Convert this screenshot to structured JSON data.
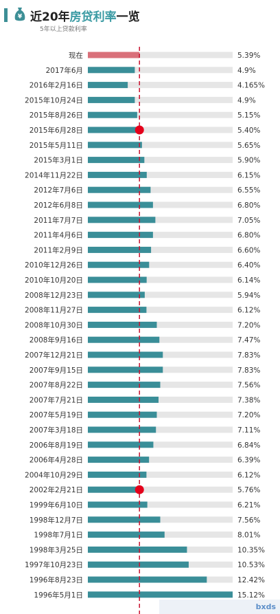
{
  "header": {
    "title_pre": "近20年",
    "title_hl": "房贷利率",
    "title_post": "一览",
    "subtitle": "5年以上贷款利率"
  },
  "watermark": "bxds",
  "chart_data": {
    "type": "bar",
    "orientation": "horizontal",
    "categories": [
      "现在",
      "2017年6月",
      "2016年2月16日",
      "2015年10月24日",
      "2015年8月26日",
      "2015年6月28日",
      "2015年5月11日",
      "2015年3月1日",
      "2014年11月22日",
      "2012年7月6日",
      "2012年6月8日",
      "2011年7月7日",
      "2011年4月6日",
      "2011年2月9日",
      "2010年12月26日",
      "2010年10月20日",
      "2008年12月23日",
      "2008年11月27日",
      "2008年10月30日",
      "2008年9月16日",
      "2007年12月21日",
      "2007年9月15日",
      "2007年8月22日",
      "2007年7月21日",
      "2007年5月19日",
      "2007年3月18日",
      "2006年8月19日",
      "2006年4月28日",
      "2004年10月29日",
      "2002年2月21日",
      "1999年6月10日",
      "1998年12月7日",
      "1998年7月1日",
      "1998年3月25日",
      "1997年10月23日",
      "1996年8月23日",
      "1996年5月1日"
    ],
    "values": [
      5.39,
      4.9,
      4.165,
      4.9,
      5.15,
      5.4,
      5.65,
      5.9,
      6.15,
      6.55,
      6.8,
      7.05,
      6.8,
      6.6,
      6.4,
      6.14,
      5.94,
      6.12,
      7.2,
      7.47,
      7.83,
      7.83,
      7.56,
      7.38,
      7.2,
      7.11,
      6.84,
      6.39,
      6.12,
      5.76,
      6.21,
      7.56,
      8.01,
      10.35,
      10.53,
      12.42,
      15.12
    ],
    "value_labels": [
      "5.39%",
      "4.9%",
      "4.165%",
      "4.9%",
      "5.15%",
      "5.40%",
      "5.65%",
      "5.90%",
      "6.15%",
      "6.55%",
      "6.80%",
      "7.05%",
      "6.80%",
      "6.60%",
      "6.40%",
      "6.14%",
      "5.94%",
      "6.12%",
      "7.20%",
      "7.47%",
      "7.83%",
      "7.83%",
      "7.56%",
      "7.38%",
      "7.20%",
      "7.11%",
      "6.84%",
      "6.39%",
      "6.12%",
      "5.76%",
      "6.21%",
      "7.56%",
      "8.01%",
      "10.35%",
      "10.53%",
      "12.42%",
      "15.12%"
    ],
    "reference_value": 5.39,
    "highlight_markers": [
      "2015年6月28日",
      "2002年2月21日"
    ],
    "xlim": [
      0,
      15.12
    ],
    "colors": {
      "bar": "#3a8e98",
      "current": "#d9707a",
      "track": "#e6e6e6",
      "reference_line": "#c8102e",
      "marker": "#e4001b"
    }
  }
}
